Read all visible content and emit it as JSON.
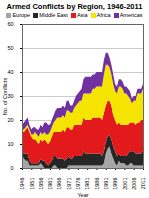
{
  "chart_data": {
    "type": "area",
    "stacked": true,
    "grid": true,
    "legend": "top",
    "title": "Armed Conflicts by Region, 1946-2011",
    "x_label": "Year",
    "y_label": "No. of Conflicts",
    "x": [
      1946,
      1947,
      1948,
      1949,
      1950,
      1951,
      1952,
      1953,
      1954,
      1955,
      1956,
      1957,
      1958,
      1959,
      1960,
      1961,
      1962,
      1963,
      1964,
      1965,
      1966,
      1967,
      1968,
      1969,
      1970,
      1971,
      1972,
      1973,
      1974,
      1975,
      1976,
      1977,
      1978,
      1979,
      1980,
      1981,
      1982,
      1983,
      1984,
      1985,
      1986,
      1987,
      1988,
      1989,
      1990,
      1991,
      1992,
      1993,
      1994,
      1995,
      1996,
      1997,
      1998,
      1999,
      2000,
      2001,
      2002,
      2003,
      2004,
      2005,
      2006,
      2007,
      2008,
      2009,
      2010,
      2011
    ],
    "xlim": [
      1946,
      2011
    ],
    "xticks": [
      1946,
      1951,
      1956,
      1961,
      1966,
      1971,
      1976,
      1981,
      1986,
      1991,
      1996,
      2001,
      2006,
      2011
    ],
    "ylim": [
      0,
      60
    ],
    "yticks": [
      0,
      10,
      20,
      30,
      40,
      50,
      60
    ],
    "series": [
      {
        "name": "Europe",
        "color": "#a6a6a6",
        "values": [
          5,
          4,
          3,
          3,
          1,
          1,
          1,
          1,
          1,
          1,
          2,
          1,
          0,
          0,
          0,
          0,
          0,
          1,
          1,
          0,
          0,
          0,
          0,
          0,
          0,
          1,
          1,
          1,
          1,
          1,
          1,
          1,
          1,
          1,
          1,
          1,
          1,
          1,
          1,
          1,
          1,
          1,
          1,
          1,
          2,
          6,
          8,
          9,
          6,
          4,
          2,
          1,
          3,
          2,
          2,
          2,
          1,
          1,
          2,
          2,
          1,
          1,
          1,
          1,
          1,
          1
        ]
      },
      {
        "name": "Middle East",
        "color": "#262626",
        "values": [
          2,
          2,
          3,
          3,
          2,
          1,
          1,
          1,
          1,
          1,
          2,
          2,
          3,
          2,
          1,
          2,
          3,
          4,
          4,
          4,
          4,
          4,
          4,
          3,
          4,
          4,
          3,
          3,
          4,
          4,
          4,
          4,
          4,
          6,
          5,
          5,
          5,
          5,
          5,
          5,
          5,
          5,
          5,
          4,
          5,
          5,
          5,
          5,
          6,
          5,
          5,
          4,
          3,
          3,
          3,
          3,
          4,
          5,
          5,
          5,
          6,
          5,
          5,
          5,
          5,
          6
        ]
      },
      {
        "name": "Asia",
        "color": "#e31a1c",
        "values": [
          8,
          9,
          10,
          11,
          12,
          11,
          10,
          10,
          9,
          8,
          8,
          8,
          9,
          9,
          9,
          9,
          10,
          10,
          10,
          11,
          11,
          11,
          12,
          12,
          13,
          12,
          12,
          12,
          13,
          13,
          13,
          13,
          13,
          14,
          14,
          14,
          14,
          14,
          15,
          15,
          15,
          15,
          15,
          15,
          16,
          15,
          15,
          14,
          14,
          13,
          13,
          13,
          13,
          13,
          13,
          13,
          13,
          12,
          12,
          12,
          12,
          12,
          13,
          13,
          14,
          13
        ]
      },
      {
        "name": "Africa",
        "color": "#f5e400",
        "values": [
          1,
          1,
          1,
          1,
          1,
          1,
          2,
          3,
          3,
          3,
          3,
          3,
          3,
          3,
          4,
          4,
          4,
          4,
          5,
          6,
          6,
          6,
          6,
          6,
          7,
          7,
          7,
          7,
          7,
          8,
          9,
          10,
          10,
          10,
          11,
          11,
          11,
          11,
          12,
          12,
          13,
          13,
          13,
          14,
          16,
          17,
          15,
          14,
          13,
          13,
          12,
          13,
          15,
          16,
          15,
          13,
          13,
          12,
          10,
          8,
          9,
          10,
          12,
          12,
          11,
          13
        ]
      },
      {
        "name": "Americas",
        "color": "#7030a0",
        "values": [
          2,
          3,
          3,
          3,
          2,
          2,
          3,
          2,
          2,
          3,
          3,
          3,
          4,
          5,
          4,
          3,
          3,
          3,
          4,
          4,
          4,
          4,
          4,
          4,
          4,
          4,
          3,
          3,
          3,
          4,
          4,
          4,
          5,
          6,
          7,
          7,
          7,
          7,
          6,
          6,
          6,
          6,
          6,
          6,
          6,
          5,
          5,
          4,
          4,
          4,
          3,
          3,
          3,
          3,
          3,
          3,
          3,
          3,
          3,
          2,
          2,
          2,
          2,
          2,
          2,
          2
        ]
      }
    ]
  }
}
